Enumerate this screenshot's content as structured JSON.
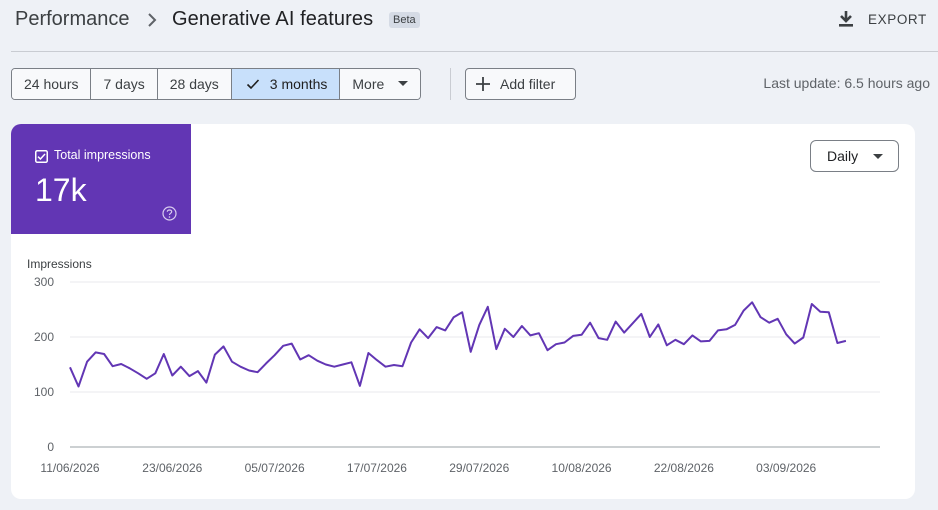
{
  "breadcrumb": {
    "root": "Performance",
    "current": "Generative AI features",
    "badge": "Beta"
  },
  "header": {
    "export_label": "EXPORT"
  },
  "date_ranges": [
    {
      "label": "24 hours",
      "active": false
    },
    {
      "label": "7 days",
      "active": false
    },
    {
      "label": "28 days",
      "active": false
    },
    {
      "label": "3 months",
      "active": true
    },
    {
      "label": "More",
      "active": false,
      "dropdown": true
    }
  ],
  "filter": {
    "add_label": "Add filter"
  },
  "status": {
    "last_update": "Last update: 6.5 hours ago"
  },
  "metric": {
    "label": "Total impressions",
    "value": "17k",
    "checked": true,
    "color": "#6236b4"
  },
  "granularity": {
    "selected": "Daily"
  },
  "chart_data": {
    "type": "line",
    "ylabel": "Impressions",
    "ylim": [
      0,
      300
    ],
    "yticks": [
      0,
      100,
      200,
      300
    ],
    "xticks": [
      "11/06/2026",
      "23/06/2026",
      "05/07/2026",
      "17/07/2026",
      "29/07/2026",
      "10/08/2026",
      "22/08/2026",
      "03/09/2026"
    ],
    "x_start": "11/06/2026",
    "x_end": "14/09/2026",
    "grid": true,
    "series": [
      {
        "color": "#6236b4",
        "values": [
          145,
          110,
          155,
          172,
          169,
          147,
          151,
          143,
          134,
          124,
          134,
          169,
          130,
          146,
          129,
          138,
          117,
          168,
          183,
          155,
          146,
          139,
          136,
          152,
          167,
          184,
          188,
          159,
          167,
          157,
          150,
          146,
          150,
          154,
          111,
          171,
          158,
          146,
          149,
          147,
          190,
          214,
          198,
          218,
          212,
          236,
          245,
          173,
          222,
          255,
          178,
          215,
          200,
          220,
          203,
          207,
          176,
          187,
          190,
          202,
          204,
          226,
          198,
          195,
          228,
          208,
          225,
          242,
          200,
          223,
          185,
          195,
          187,
          203,
          192,
          193,
          212,
          214,
          222,
          248,
          263,
          236,
          226,
          233,
          205,
          188,
          199,
          260,
          246,
          245,
          189,
          193
        ]
      }
    ]
  }
}
